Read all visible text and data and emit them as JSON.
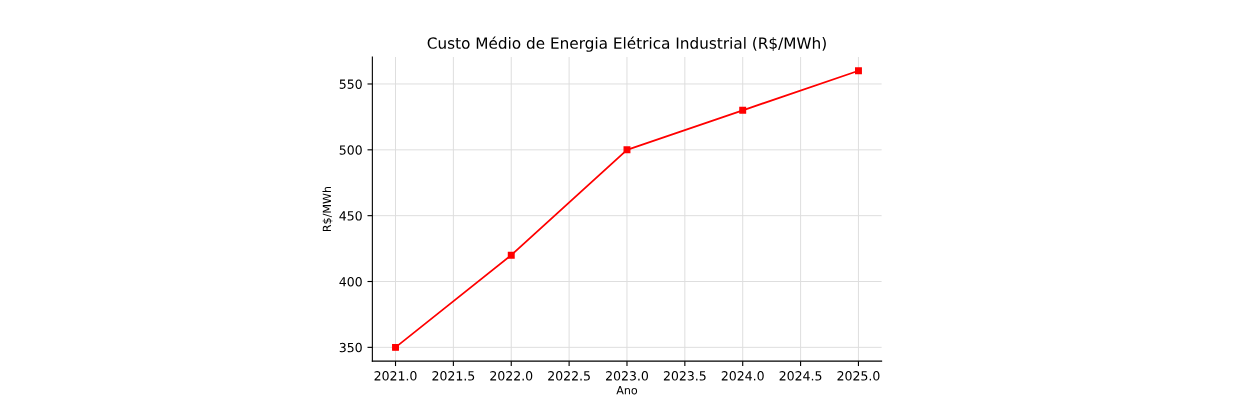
{
  "chart_data": {
    "type": "line",
    "title": "Custo Médio de Energia Elétrica Industrial (R$/MWh)",
    "xlabel": "Ano",
    "ylabel": "R$/MWh",
    "x": [
      2021,
      2022,
      2023,
      2024,
      2025
    ],
    "series": [
      {
        "color": "#ff0000",
        "values": [
          350,
          420,
          500,
          530,
          560
        ]
      }
    ],
    "xlim": [
      2020.8,
      2025.2
    ],
    "xticks": [
      {
        "value": 2021,
        "label": "2021.0"
      },
      2021.5,
      {
        "value": 2022,
        "label": "2022.0"
      },
      2022.5,
      {
        "value": 2023,
        "label": "2023.0"
      },
      2023.5,
      {
        "value": 2024,
        "label": "2024.0"
      },
      2024.5,
      {
        "value": 2025,
        "label": "2025.0"
      }
    ],
    "ylim": [
      339.5,
      570.5
    ],
    "yticks": [
      350,
      400,
      450,
      500,
      550
    ],
    "grid": true,
    "marker": "square",
    "line_style": "solid"
  }
}
